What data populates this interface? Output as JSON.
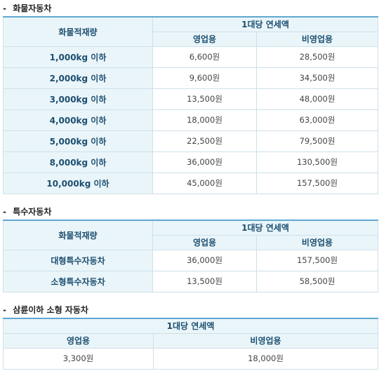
{
  "section1": {
    "title": "화물자동차",
    "col_weight": "화물적재량",
    "col_group": "1대당 연세액",
    "col_business": "영업용",
    "col_nonbusiness": "비영업용",
    "rows": [
      {
        "label": "1,000kg 이하",
        "business": "6,600원",
        "nonbusiness": "28,500원"
      },
      {
        "label": "2,000kg 이하",
        "business": "9,600원",
        "nonbusiness": "34,500원"
      },
      {
        "label": "3,000kg 이하",
        "business": "13,500원",
        "nonbusiness": "48,000원"
      },
      {
        "label": "4,000kg 이하",
        "business": "18,000원",
        "nonbusiness": "63,000원"
      },
      {
        "label": "5,000kg 이하",
        "business": "22,500원",
        "nonbusiness": "79,500원"
      },
      {
        "label": "8,000kg 이하",
        "business": "36,000원",
        "nonbusiness": "130,500원"
      },
      {
        "label": "10,000kg 이하",
        "business": "45,000원",
        "nonbusiness": "157,500원"
      }
    ]
  },
  "section2": {
    "title": "특수자동차",
    "col_weight": "화물적재량",
    "col_group": "1대당 연세액",
    "col_business": "영업용",
    "col_nonbusiness": "비영업용",
    "rows": [
      {
        "label": "대형특수자동차",
        "business": "36,000원",
        "nonbusiness": "157,500원"
      },
      {
        "label": "소형특수자동차",
        "business": "13,500원",
        "nonbusiness": "58,500원"
      }
    ]
  },
  "section3": {
    "title": "삼륜이하 소형 자동차",
    "col_group": "1대당 연세액",
    "col_business": "영업용",
    "col_nonbusiness": "비영업용",
    "row": {
      "business": "3,300원",
      "nonbusiness": "18,000원"
    }
  }
}
